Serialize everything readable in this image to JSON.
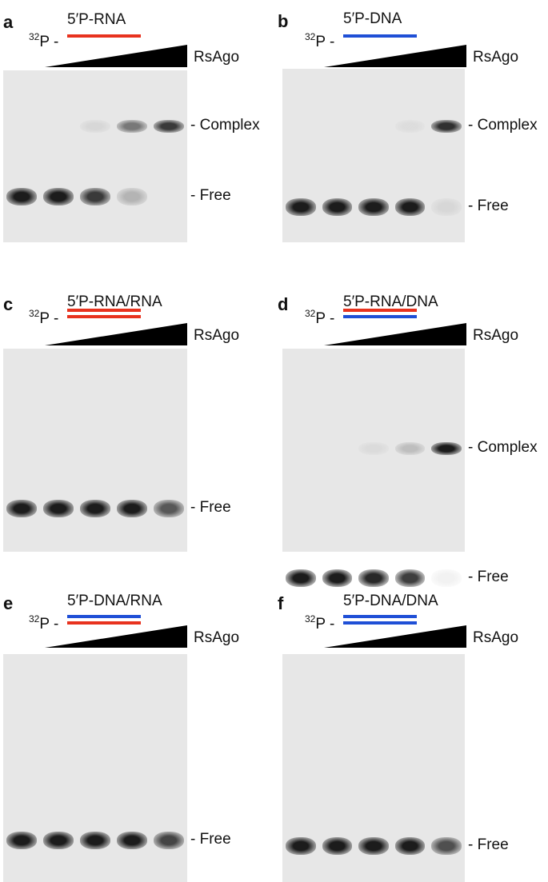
{
  "figure": {
    "protein": "RsAgo",
    "isotope_label": {
      "sup": "32",
      "text": "P"
    },
    "colors": {
      "rna": "#e8321e",
      "dna": "#1f4fd6",
      "wedge": "#000000",
      "gel_bg": "#e7e7e7",
      "band": "#1c1c1c"
    },
    "panels": [
      {
        "letter": "a",
        "substrate": "5′P-RNA",
        "strands": [
          "rna"
        ],
        "markers": {
          "complex": "- Complex",
          "free": "- Free"
        },
        "lanes": {
          "complex": [
            0,
            0,
            0.08,
            0.55,
            0.85
          ],
          "free": [
            1.0,
            1.0,
            0.85,
            0.25,
            0
          ]
        }
      },
      {
        "letter": "b",
        "substrate": "5′P-DNA",
        "strands": [
          "dna"
        ],
        "markers": {
          "complex": "- Complex",
          "free": "- Free"
        },
        "lanes": {
          "complex": [
            0,
            0,
            0,
            0.05,
            0.9
          ],
          "free": [
            1.0,
            1.0,
            1.0,
            1.0,
            0.08
          ]
        }
      },
      {
        "letter": "c",
        "substrate": "5′P-RNA/RNA",
        "strands": [
          "rna",
          "rna"
        ],
        "markers": {
          "complex": "",
          "free": "- Free"
        },
        "lanes": {
          "complex": [
            0,
            0,
            0,
            0,
            0.05
          ],
          "free": [
            1.0,
            1.0,
            1.0,
            1.0,
            0.7
          ]
        }
      },
      {
        "letter": "d",
        "substrate": "5′P-RNA/DNA",
        "strands": [
          "rna",
          "dna"
        ],
        "markers": {
          "complex": "- Complex",
          "free": "- Free"
        },
        "lanes": {
          "complex": [
            0,
            0,
            0.06,
            0.2,
            1.0
          ],
          "free": [
            1.0,
            1.0,
            0.95,
            0.85,
            0.06
          ]
        }
      },
      {
        "letter": "e",
        "substrate": "5′P-DNA/RNA",
        "strands": [
          "dna",
          "rna"
        ],
        "markers": {
          "complex": "",
          "free": "- Free"
        },
        "lanes": {
          "complex": [
            0,
            0,
            0,
            0,
            0.2
          ],
          "free": [
            1.0,
            1.0,
            1.0,
            1.0,
            0.8
          ]
        }
      },
      {
        "letter": "f",
        "substrate": "5′P-DNA/DNA",
        "strands": [
          "dna",
          "dna"
        ],
        "markers": {
          "complex": "",
          "free": "- Free"
        },
        "lanes": {
          "complex": [
            0,
            0,
            0,
            0,
            0
          ],
          "free": [
            1.0,
            1.0,
            1.0,
            1.0,
            0.75
          ]
        }
      }
    ]
  }
}
